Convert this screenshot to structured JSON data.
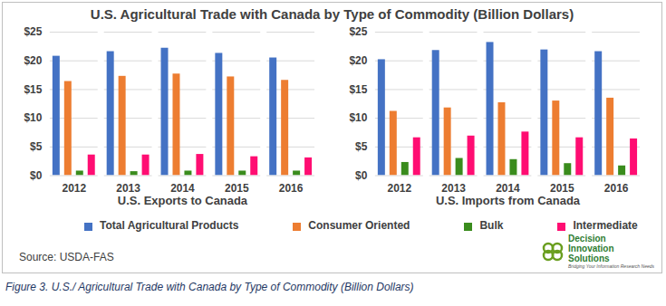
{
  "chart_data": {
    "type": "bar",
    "title": "U.S. Agricultural Trade with Canada by Type of Commodity (Billion Dollars)",
    "categories": [
      "2012",
      "2013",
      "2014",
      "2015",
      "2016",
      "2012",
      "2013",
      "2014",
      "2015",
      "2016"
    ],
    "group_labels": [
      "U.S. Exports to Canada",
      "U.S. Imports from Canada"
    ],
    "series": [
      {
        "name": "Total Agricultural Products",
        "color": "#4472C4",
        "values": [
          20.8,
          21.6,
          22.2,
          21.3,
          20.5,
          20.2,
          21.8,
          23.2,
          21.9,
          21.6
        ]
      },
      {
        "name": "Consumer Oriented",
        "color": "#ED7D31",
        "values": [
          16.4,
          17.3,
          17.7,
          17.2,
          16.6,
          11.2,
          11.8,
          12.7,
          13.0,
          13.5
        ]
      },
      {
        "name": "Bulk",
        "color": "#3A8C1D",
        "values": [
          0.8,
          0.7,
          0.8,
          0.8,
          0.8,
          2.3,
          3.0,
          2.8,
          2.1,
          1.7
        ]
      },
      {
        "name": "Intermediate",
        "color": "#FF0D72",
        "values": [
          3.6,
          3.6,
          3.7,
          3.3,
          3.1,
          6.6,
          6.9,
          7.6,
          6.6,
          6.4
        ]
      }
    ],
    "ylim": [
      0,
      25
    ],
    "yticks": [
      {
        "value": 0,
        "label": "$0"
      },
      {
        "value": 5,
        "label": "$5"
      },
      {
        "value": 10,
        "label": "$10"
      },
      {
        "value": 15,
        "label": "$15"
      },
      {
        "value": 20,
        "label": "$20"
      },
      {
        "value": 25,
        "label": "$25"
      }
    ],
    "grid": true,
    "legend": "bottom",
    "source": "Source: USDA-FAS",
    "logo": {
      "name": "Decision Innovation Solutions",
      "tagline": "Bridging Your Information Research Needs"
    },
    "caption": "Figure 3. U.S./ Agricultural Trade with Canada by Type of Commodity (Billion Dollars)"
  }
}
